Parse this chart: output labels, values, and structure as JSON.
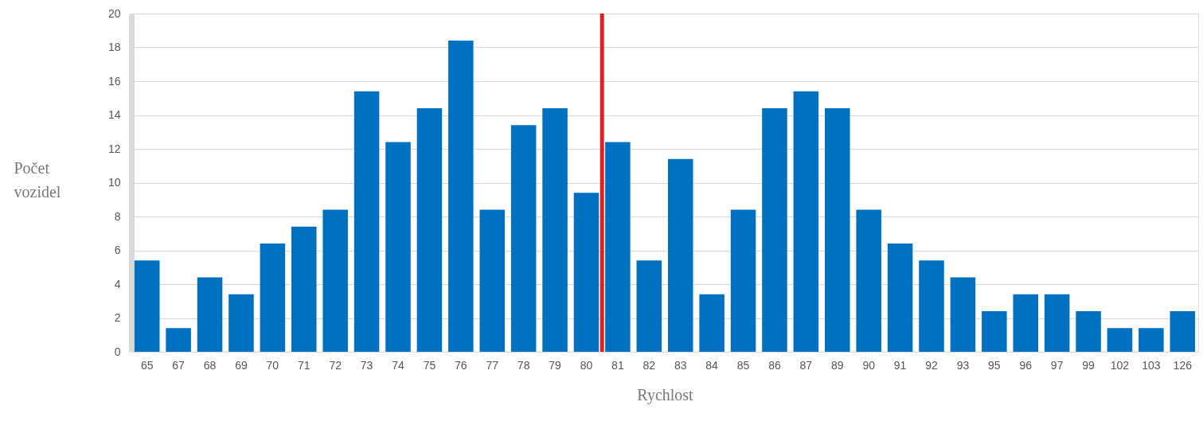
{
  "chart_data": {
    "type": "bar",
    "xlabel": "Rychlost",
    "ylabel": "Počet vozidel",
    "categories": [
      "65",
      "67",
      "68",
      "69",
      "70",
      "71",
      "72",
      "73",
      "74",
      "75",
      "76",
      "77",
      "78",
      "79",
      "80",
      "81",
      "82",
      "83",
      "84",
      "85",
      "86",
      "87",
      "89",
      "90",
      "91",
      "92",
      "93",
      "95",
      "96",
      "97",
      "99",
      "102",
      "103",
      "126"
    ],
    "values": [
      5.4,
      1.4,
      4.4,
      3.4,
      6.4,
      7.4,
      8.4,
      15.4,
      12.4,
      14.4,
      18.4,
      8.4,
      13.4,
      14.4,
      9.4,
      12.4,
      5.4,
      11.4,
      3.4,
      8.4,
      14.4,
      15.4,
      14.4,
      8.4,
      6.4,
      5.4,
      4.4,
      2.4,
      3.4,
      3.4,
      2.4,
      1.4,
      1.4,
      2.4
    ],
    "color": "#0070c0",
    "ylim": [
      0,
      20
    ],
    "yticks": [
      0,
      2,
      4,
      6,
      8,
      10,
      12,
      14,
      16,
      18,
      20
    ],
    "grid": "y",
    "ref_lines": [
      {
        "axis": "x",
        "value": "80",
        "color": "#e02020"
      }
    ]
  }
}
